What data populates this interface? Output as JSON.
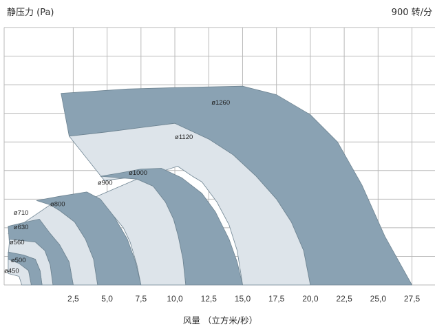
{
  "chart_data": {
    "type": "area",
    "title": "",
    "ylabel": "静压力 (Pa)",
    "xlabel": "风量 （立方米/秒）",
    "speed_label": "900 转/分",
    "x_ticks": [
      "2,5",
      "5,0",
      "7,5",
      "10,0",
      "12,5",
      "15,0",
      "17,5",
      "20,0",
      "22,5",
      "25,0",
      "27,5"
    ],
    "xlim": [
      -2.6,
      29.2
    ],
    "ylim": [
      0,
      9
    ],
    "grid": true,
    "colors": {
      "dark": "#8aa2b3",
      "light": "#dde4ea",
      "stroke": "#6e8492",
      "grid": "#b9b9b9"
    },
    "series": [
      {
        "name": "ø1260",
        "shade": "dark",
        "upper": [
          [
            1.6,
            6.7
          ],
          [
            6.5,
            6.85
          ],
          [
            10.0,
            6.9
          ],
          [
            15.0,
            6.95
          ],
          [
            17.5,
            6.65
          ],
          [
            20.0,
            5.95
          ],
          [
            22.0,
            5.0
          ],
          [
            23.8,
            3.5
          ],
          [
            25.5,
            1.7
          ],
          [
            27.5,
            0
          ]
        ],
        "lower": [
          [
            20.0,
            0
          ],
          [
            19.5,
            1.2
          ],
          [
            18.6,
            2.2
          ],
          [
            17.5,
            3.0
          ],
          [
            16.0,
            3.8
          ],
          [
            14.3,
            4.55
          ],
          [
            12.5,
            5.1
          ],
          [
            10.0,
            5.65
          ],
          [
            7.5,
            5.5
          ],
          [
            5.0,
            5.35
          ],
          [
            2.2,
            5.2
          ]
        ]
      },
      {
        "name": "ø1120",
        "shade": "light",
        "upper": [
          [
            2.2,
            5.2
          ],
          [
            5.0,
            5.35
          ],
          [
            7.5,
            5.5
          ],
          [
            10.0,
            5.65
          ],
          [
            12.5,
            5.1
          ],
          [
            14.3,
            4.55
          ],
          [
            16.0,
            3.8
          ],
          [
            17.5,
            3.0
          ],
          [
            18.6,
            2.2
          ],
          [
            19.5,
            1.2
          ],
          [
            20.0,
            0
          ]
        ],
        "lower": [
          [
            15.0,
            0
          ],
          [
            14.6,
            1.2
          ],
          [
            14.0,
            2.1
          ],
          [
            13.1,
            2.9
          ],
          [
            12.0,
            3.6
          ],
          [
            11.3,
            3.8
          ],
          [
            10.2,
            4.15
          ],
          [
            8.6,
            3.9
          ],
          [
            6.5,
            3.75
          ],
          [
            4.8,
            3.65
          ]
        ]
      },
      {
        "name": "ø1000",
        "shade": "dark",
        "upper": [
          [
            4.5,
            3.8
          ],
          [
            6.0,
            3.92
          ],
          [
            7.5,
            4.05
          ],
          [
            9.0,
            4.08
          ],
          [
            10.5,
            3.75
          ],
          [
            12.0,
            3.2
          ],
          [
            13.0,
            2.55
          ],
          [
            14.0,
            1.6
          ],
          [
            14.6,
            0.8
          ],
          [
            15.0,
            0
          ]
        ],
        "lower": [
          [
            10.8,
            0
          ],
          [
            10.6,
            0.9
          ],
          [
            10.25,
            1.7
          ],
          [
            9.9,
            2.3
          ],
          [
            9.3,
            2.9
          ],
          [
            8.4,
            3.45
          ],
          [
            7.2,
            3.7
          ]
        ]
      },
      {
        "name": "ø900",
        "shade": "light",
        "upper": [
          [
            7.2,
            3.7
          ],
          [
            8.4,
            3.45
          ],
          [
            9.3,
            2.9
          ],
          [
            9.9,
            2.3
          ],
          [
            10.25,
            1.7
          ],
          [
            10.6,
            0.9
          ],
          [
            10.8,
            0
          ]
        ],
        "lower": [
          [
            7.5,
            0
          ],
          [
            7.2,
            0.7
          ],
          [
            6.7,
            1.5
          ],
          [
            6.2,
            2.0
          ],
          [
            5.5,
            2.4
          ],
          [
            4.5,
            2.7
          ],
          [
            2.5,
            2.55
          ],
          [
            0.0,
            2.3
          ],
          [
            -0.9,
            2.05
          ]
        ]
      },
      {
        "name": "ø800",
        "shade": "dark",
        "upper": [
          [
            -0.2,
            2.95
          ],
          [
            1.5,
            3.1
          ],
          [
            3.5,
            3.25
          ],
          [
            4.5,
            3.0
          ],
          [
            5.5,
            2.4
          ],
          [
            6.5,
            1.6
          ],
          [
            7.1,
            0.8
          ],
          [
            7.5,
            0
          ]
        ],
        "lower": [
          [
            4.3,
            0
          ],
          [
            4.0,
            0.9
          ],
          [
            3.4,
            1.6
          ],
          [
            2.6,
            2.2
          ],
          [
            1.5,
            2.6
          ],
          [
            0.8,
            2.8
          ]
        ]
      },
      {
        "name": "ø710",
        "shade": "light",
        "upper": [
          [
            0.8,
            2.8
          ],
          [
            1.5,
            2.6
          ],
          [
            2.6,
            2.2
          ],
          [
            3.4,
            1.6
          ],
          [
            4.0,
            0.9
          ],
          [
            4.3,
            0
          ]
        ],
        "lower": [
          [
            2.5,
            0
          ],
          [
            2.2,
            0.8
          ],
          [
            1.5,
            1.4
          ],
          [
            0.8,
            1.8
          ],
          [
            -0.3,
            2.05
          ],
          [
            -2.3,
            1.8
          ]
        ]
      },
      {
        "name": "ø630",
        "shade": "dark",
        "upper": [
          [
            -2.3,
            2.05
          ],
          [
            -1.0,
            2.2
          ],
          [
            0.0,
            2.3
          ],
          [
            0.8,
            1.8
          ],
          [
            1.5,
            1.4
          ],
          [
            2.2,
            0.8
          ],
          [
            2.5,
            0
          ]
        ],
        "lower": [
          [
            1.0,
            0
          ],
          [
            0.8,
            0.7
          ],
          [
            0.4,
            1.2
          ],
          [
            -0.3,
            1.5
          ],
          [
            -2.2,
            1.35
          ]
        ]
      },
      {
        "name": "ø560",
        "shade": "light",
        "upper": [
          [
            -2.2,
            1.6
          ],
          [
            -0.3,
            1.5
          ],
          [
            0.4,
            1.2
          ],
          [
            0.8,
            0.7
          ],
          [
            1.0,
            0
          ]
        ],
        "lower": [
          [
            0.2,
            0
          ],
          [
            0.05,
            0.5
          ],
          [
            -0.3,
            0.9
          ],
          [
            -1.2,
            1.05
          ],
          [
            -2.3,
            1.0
          ]
        ]
      },
      {
        "name": "ø500",
        "shade": "dark",
        "upper": [
          [
            -2.3,
            1.15
          ],
          [
            -1.2,
            1.05
          ],
          [
            -0.3,
            0.9
          ],
          [
            0.05,
            0.5
          ],
          [
            0.2,
            0
          ]
        ],
        "lower": [
          [
            -0.6,
            0
          ],
          [
            -0.8,
            0.5
          ],
          [
            -1.5,
            0.75
          ],
          [
            -2.3,
            0.75
          ]
        ]
      },
      {
        "name": "ø450",
        "shade": "light",
        "upper": [
          [
            -2.3,
            0.9
          ],
          [
            -1.5,
            0.75
          ],
          [
            -0.8,
            0.5
          ],
          [
            -0.6,
            0
          ]
        ],
        "lower": [
          [
            -1.3,
            0
          ],
          [
            -1.5,
            0.3
          ],
          [
            -2.3,
            0.4
          ]
        ]
      }
    ],
    "label_positions": {
      "ø1260": [
        12.7,
        6.3
      ],
      "ø1120": [
        10.0,
        5.1
      ],
      "ø1000": [
        6.6,
        3.85
      ],
      "ø900": [
        4.3,
        3.5
      ],
      "ø800": [
        0.8,
        2.75
      ],
      "ø710": [
        -1.9,
        2.45
      ],
      "ø630": [
        -1.9,
        1.95
      ],
      "ø560": [
        -2.2,
        1.42
      ],
      "ø500": [
        -2.1,
        0.79
      ],
      "ø450": [
        -2.6,
        0.42
      ]
    }
  }
}
